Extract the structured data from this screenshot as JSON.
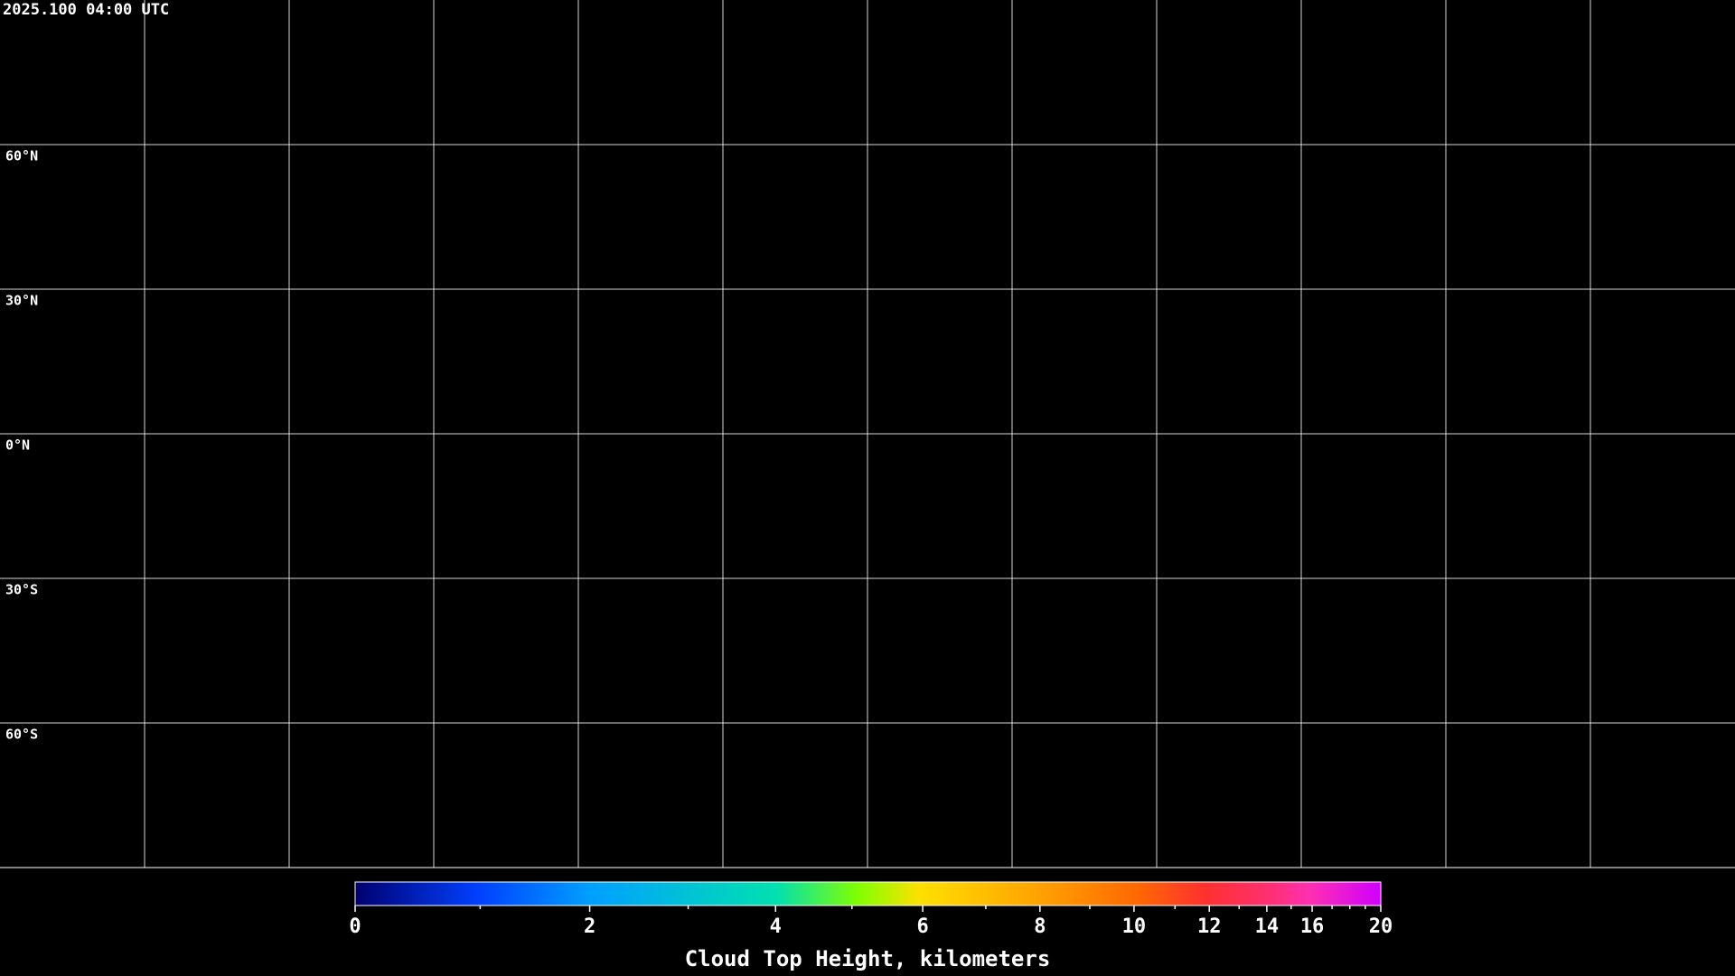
{
  "header": {
    "title": "2025.100 04:00 UTC"
  },
  "map": {
    "lat_labels": [
      "60°N",
      "30°N",
      "0°N",
      "30°S",
      "60°S"
    ]
  },
  "colorbar": {
    "label": "Cloud Top Height, kilometers",
    "ticks": [
      0,
      2,
      4,
      6,
      8,
      10,
      12,
      14,
      16,
      20
    ]
  }
}
